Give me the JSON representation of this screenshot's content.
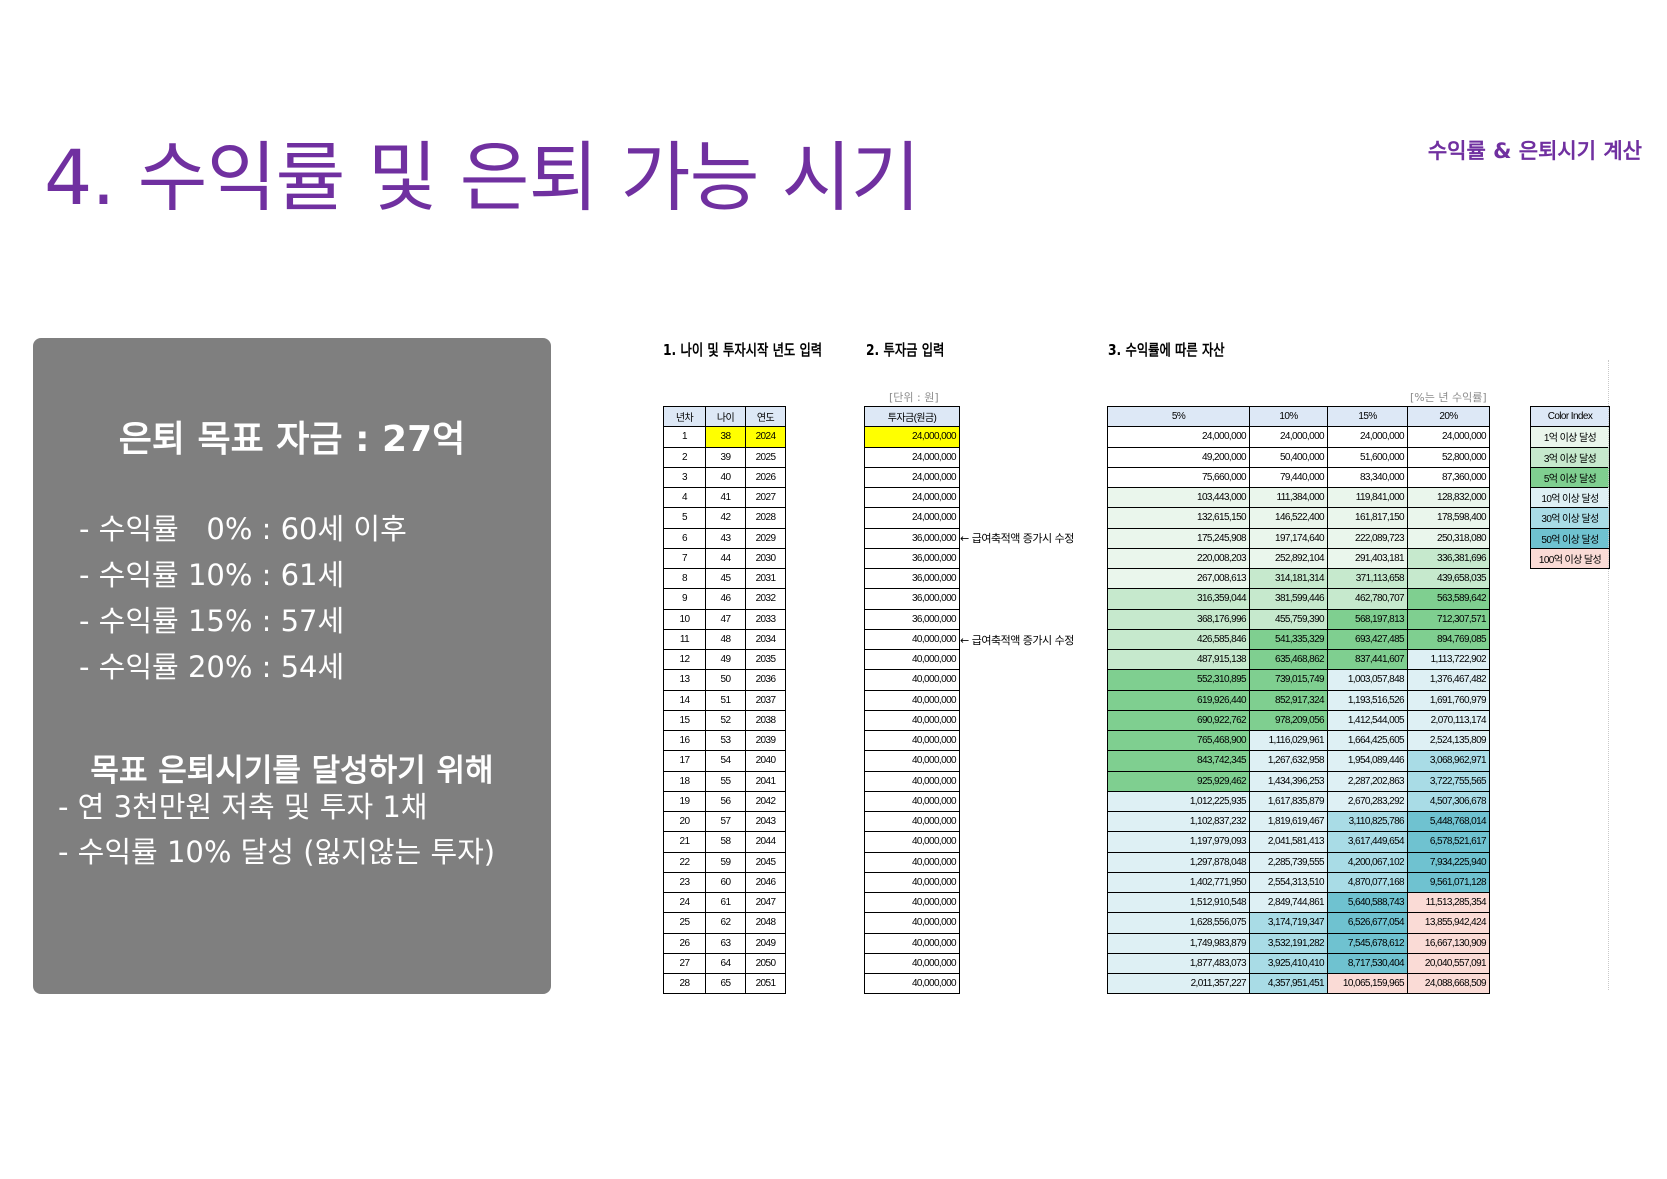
{
  "title": "4. 수익률 및 은퇴 가능 시기",
  "header_tag": "수익률 & 은퇴시기 계산",
  "summary": {
    "heading": "은퇴 목표 자금 : 27억",
    "lines": [
      "- 수익률   0% : 60세 이후",
      "- 수익률 10% : 61세",
      "- 수익률 15% : 57세",
      "- 수익률 20% : 54세"
    ],
    "goal_heading": "목표 은퇴시기를 달성하기 위해",
    "goal_lines": [
      "- 연 3천만원 저축 및 투자 1채",
      "- 수익률 10% 달성 (잃지않는 투자)"
    ]
  },
  "sections": {
    "s1": "1. 나이 및 투자시작 년도 입력",
    "s2": "2. 투자금 입력",
    "s3": "3. 수익률에 따른 자산"
  },
  "unit_note": "[단위 : 원]",
  "rate_note": "[%는 년 수익률]",
  "table1_headers": [
    "년차",
    "나이",
    "연도"
  ],
  "table2_header": "투자금(원금)",
  "table3_headers": [
    "5%",
    "10%",
    "15%",
    "20%"
  ],
  "memo": "← 급여축적액 증가시 수정",
  "rows": [
    [
      "1",
      "38",
      "2024",
      "24,000,000",
      "24,000,000",
      "24,000,000",
      "24,000,000",
      "24,000,000"
    ],
    [
      "2",
      "39",
      "2025",
      "24,000,000",
      "49,200,000",
      "50,400,000",
      "51,600,000",
      "52,800,000"
    ],
    [
      "3",
      "40",
      "2026",
      "24,000,000",
      "75,660,000",
      "79,440,000",
      "83,340,000",
      "87,360,000"
    ],
    [
      "4",
      "41",
      "2027",
      "24,000,000",
      "103,443,000",
      "111,384,000",
      "119,841,000",
      "128,832,000"
    ],
    [
      "5",
      "42",
      "2028",
      "24,000,000",
      "132,615,150",
      "146,522,400",
      "161,817,150",
      "178,598,400"
    ],
    [
      "6",
      "43",
      "2029",
      "36,000,000",
      "175,245,908",
      "197,174,640",
      "222,089,723",
      "250,318,080"
    ],
    [
      "7",
      "44",
      "2030",
      "36,000,000",
      "220,008,203",
      "252,892,104",
      "291,403,181",
      "336,381,696"
    ],
    [
      "8",
      "45",
      "2031",
      "36,000,000",
      "267,008,613",
      "314,181,314",
      "371,113,658",
      "439,658,035"
    ],
    [
      "9",
      "46",
      "2032",
      "36,000,000",
      "316,359,044",
      "381,599,446",
      "462,780,707",
      "563,589,642"
    ],
    [
      "10",
      "47",
      "2033",
      "36,000,000",
      "368,176,996",
      "455,759,390",
      "568,197,813",
      "712,307,571"
    ],
    [
      "11",
      "48",
      "2034",
      "40,000,000",
      "426,585,846",
      "541,335,329",
      "693,427,485",
      "894,769,085"
    ],
    [
      "12",
      "49",
      "2035",
      "40,000,000",
      "487,915,138",
      "635,468,862",
      "837,441,607",
      "1,113,722,902"
    ],
    [
      "13",
      "50",
      "2036",
      "40,000,000",
      "552,310,895",
      "739,015,749",
      "1,003,057,848",
      "1,376,467,482"
    ],
    [
      "14",
      "51",
      "2037",
      "40,000,000",
      "619,926,440",
      "852,917,324",
      "1,193,516,526",
      "1,691,760,979"
    ],
    [
      "15",
      "52",
      "2038",
      "40,000,000",
      "690,922,762",
      "978,209,056",
      "1,412,544,005",
      "2,070,113,174"
    ],
    [
      "16",
      "53",
      "2039",
      "40,000,000",
      "765,468,900",
      "1,116,029,961",
      "1,664,425,605",
      "2,524,135,809"
    ],
    [
      "17",
      "54",
      "2040",
      "40,000,000",
      "843,742,345",
      "1,267,632,958",
      "1,954,089,446",
      "3,068,962,971"
    ],
    [
      "18",
      "55",
      "2041",
      "40,000,000",
      "925,929,462",
      "1,434,396,253",
      "2,287,202,863",
      "3,722,755,565"
    ],
    [
      "19",
      "56",
      "2042",
      "40,000,000",
      "1,012,225,935",
      "1,617,835,879",
      "2,670,283,292",
      "4,507,306,678"
    ],
    [
      "20",
      "57",
      "2043",
      "40,000,000",
      "1,102,837,232",
      "1,819,619,467",
      "3,110,825,786",
      "5,448,768,014"
    ],
    [
      "21",
      "58",
      "2044",
      "40,000,000",
      "1,197,979,093",
      "2,041,581,413",
      "3,617,449,654",
      "6,578,521,617"
    ],
    [
      "22",
      "59",
      "2045",
      "40,000,000",
      "1,297,878,048",
      "2,285,739,555",
      "4,200,067,102",
      "7,934,225,940"
    ],
    [
      "23",
      "60",
      "2046",
      "40,000,000",
      "1,402,771,950",
      "2,554,313,510",
      "4,870,077,168",
      "9,561,071,128"
    ],
    [
      "24",
      "61",
      "2047",
      "40,000,000",
      "1,512,910,548",
      "2,849,744,861",
      "5,640,588,743",
      "11,513,285,354"
    ],
    [
      "25",
      "62",
      "2048",
      "40,000,000",
      "1,628,556,075",
      "3,174,719,347",
      "6,526,677,054",
      "13,855,942,424"
    ],
    [
      "26",
      "63",
      "2049",
      "40,000,000",
      "1,749,983,879",
      "3,532,191,282",
      "7,545,678,612",
      "16,667,130,909"
    ],
    [
      "27",
      "64",
      "2050",
      "40,000,000",
      "1,877,483,073",
      "3,925,410,410",
      "8,717,530,404",
      "20,040,557,091"
    ],
    [
      "28",
      "65",
      "2051",
      "40,000,000",
      "2,011,357,227",
      "4,357,951,451",
      "10,065,159,965",
      "24,088,668,509"
    ]
  ],
  "legend": {
    "title": "Color Index",
    "items": [
      {
        "label": "1억 이상 달성",
        "color": "#eaf6ec"
      },
      {
        "label": "3억 이상 달성",
        "color": "#c6e9cd"
      },
      {
        "label": "5억 이상 달성",
        "color": "#7fcf90"
      },
      {
        "label": "10억 이상 달성",
        "color": "#def0f4"
      },
      {
        "label": "30억 이상 달성",
        "color": "#a9dce6"
      },
      {
        "label": "50억 이상 달성",
        "color": "#6fc2d0"
      },
      {
        "label": "100억 이상 달성",
        "color": "#fadbd6"
      }
    ]
  }
}
